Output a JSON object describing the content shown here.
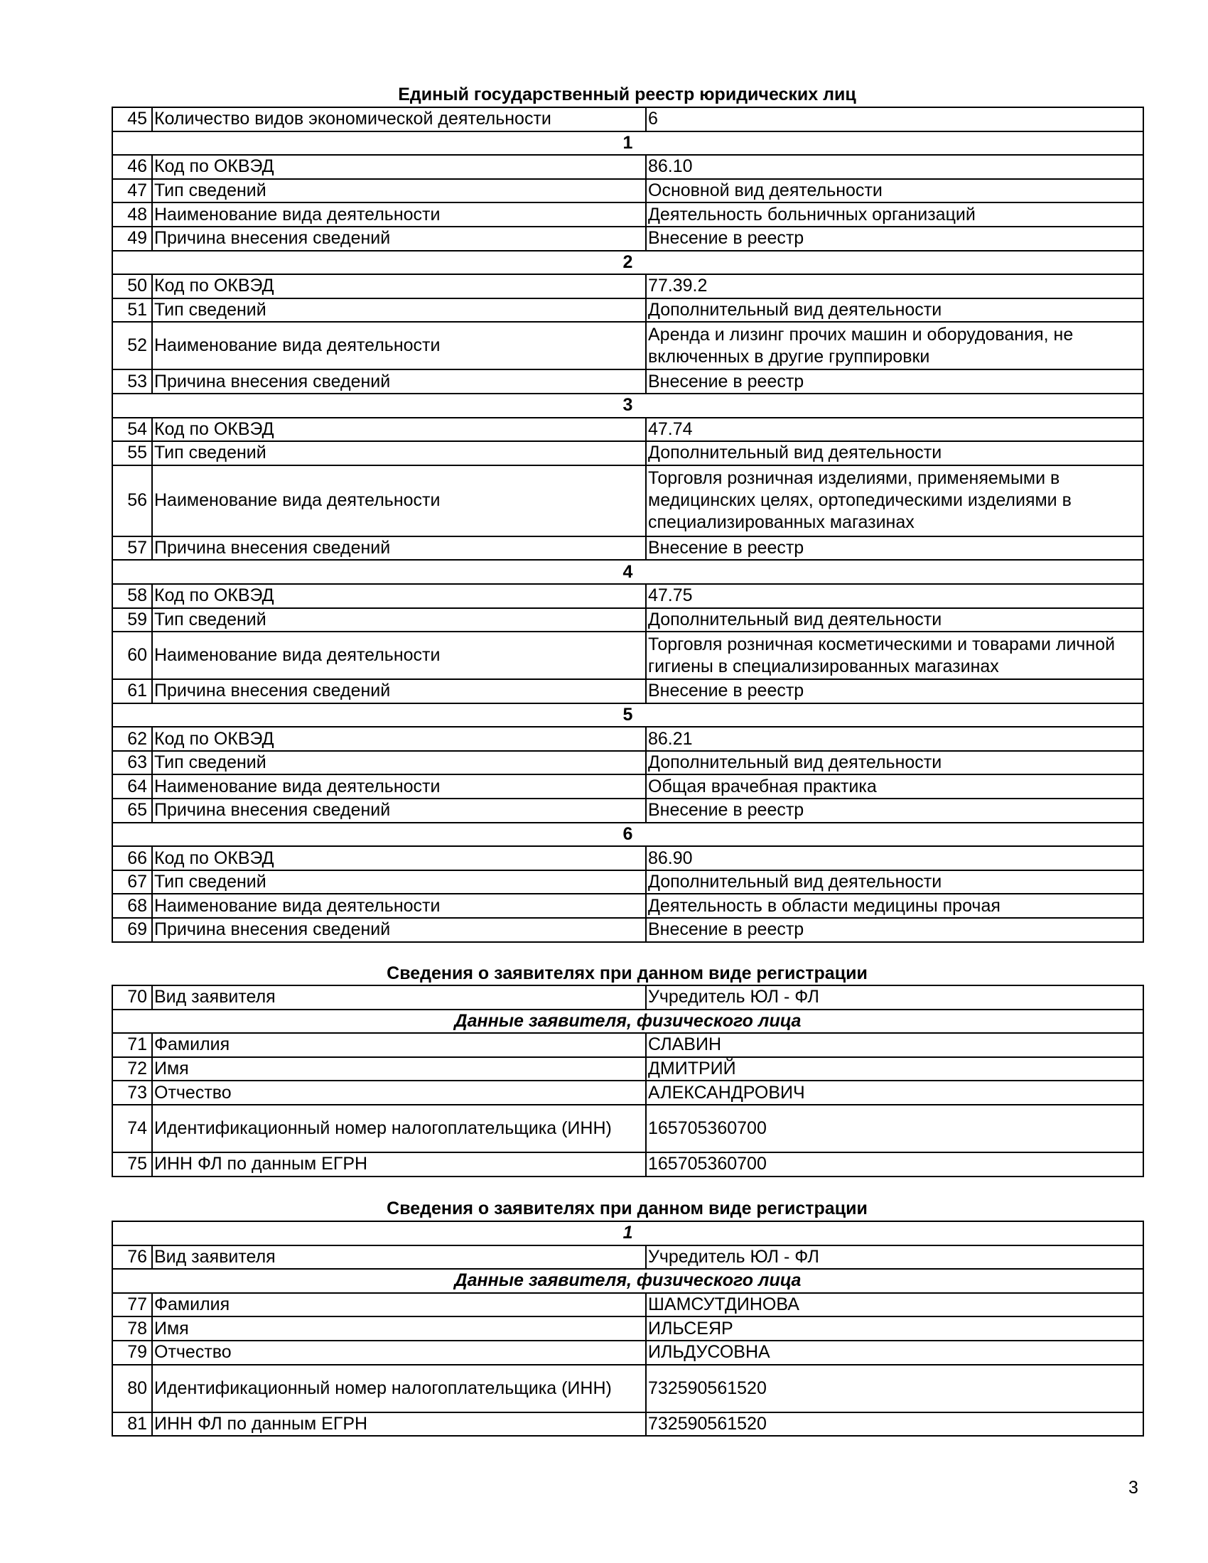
{
  "sections": [
    {
      "title": "Единый государственный реестр юридических лиц",
      "rows": [
        {
          "num": "45",
          "label": "Количество видов экономической деятельности",
          "value": "6"
        },
        {
          "header": "1"
        },
        {
          "num": "46",
          "label": "Код по ОКВЭД",
          "value": "86.10"
        },
        {
          "num": "47",
          "label": "Тип сведений",
          "value": "Основной вид деятельности"
        },
        {
          "num": "48",
          "label": "Наименование вида деятельности",
          "value": "Деятельность больничных организаций"
        },
        {
          "num": "49",
          "label": "Причина внесения сведений",
          "value": "Внесение в реестр"
        },
        {
          "header": "2"
        },
        {
          "num": "50",
          "label": "Код по ОКВЭД",
          "value": "77.39.2"
        },
        {
          "num": "51",
          "label": "Тип сведений",
          "value": "Дополнительный вид деятельности"
        },
        {
          "num": "52",
          "label": "Наименование вида деятельности",
          "value": "Аренда и лизинг прочих машин и оборудования, не включенных в другие группировки",
          "lines": 2
        },
        {
          "num": "53",
          "label": "Причина внесения сведений",
          "value": "Внесение в реестр"
        },
        {
          "header": "3"
        },
        {
          "num": "54",
          "label": "Код по ОКВЭД",
          "value": "47.74"
        },
        {
          "num": "55",
          "label": "Тип сведений",
          "value": "Дополнительный вид деятельности"
        },
        {
          "num": "56",
          "label": "Наименование вида деятельности",
          "value": "Торговля розничная изделиями, применяемыми в медицинских целях, ортопедическими изделиями в специализированных магазинах",
          "lines": 3
        },
        {
          "num": "57",
          "label": "Причина внесения сведений",
          "value": "Внесение в реестр"
        },
        {
          "header": "4"
        },
        {
          "num": "58",
          "label": "Код по ОКВЭД",
          "value": "47.75"
        },
        {
          "num": "59",
          "label": "Тип сведений",
          "value": "Дополнительный вид деятельности"
        },
        {
          "num": "60",
          "label": "Наименование вида деятельности",
          "value": "Торговля розничная косметическими и товарами личной гигиены в специализированных магазинах",
          "lines": 2
        },
        {
          "num": "61",
          "label": "Причина внесения сведений",
          "value": "Внесение в реестр"
        },
        {
          "header": "5"
        },
        {
          "num": "62",
          "label": "Код по ОКВЭД",
          "value": "86.21"
        },
        {
          "num": "63",
          "label": "Тип сведений",
          "value": "Дополнительный вид деятельности"
        },
        {
          "num": "64",
          "label": "Наименование вида деятельности",
          "value": "Общая врачебная практика"
        },
        {
          "num": "65",
          "label": "Причина внесения сведений",
          "value": "Внесение в реестр"
        },
        {
          "header": "6"
        },
        {
          "num": "66",
          "label": "Код по ОКВЭД",
          "value": "86.90"
        },
        {
          "num": "67",
          "label": "Тип сведений",
          "value": "Дополнительный вид деятельности"
        },
        {
          "num": "68",
          "label": "Наименование вида деятельности",
          "value": "Деятельность в области медицины прочая"
        },
        {
          "num": "69",
          "label": "Причина внесения сведений",
          "value": "Внесение в реестр"
        }
      ]
    },
    {
      "title": "Сведения о заявителях при данном виде регистрации",
      "rows": [
        {
          "num": "70",
          "label": "Вид заявителя",
          "value": "Учредитель ЮЛ - ФЛ"
        },
        {
          "header": "Данные заявителя, физического лица",
          "italic": true
        },
        {
          "num": "71",
          "label": "Фамилия",
          "value": "СЛАВИН"
        },
        {
          "num": "72",
          "label": "Имя",
          "value": "ДМИТРИЙ"
        },
        {
          "num": "73",
          "label": "Отчество",
          "value": "АЛЕКСАНДРОВИЧ"
        },
        {
          "num": "74",
          "label": "Идентификационный номер налогоплательщика (ИНН)",
          "value": "165705360700",
          "lines": 2
        },
        {
          "num": "75",
          "label": "ИНН ФЛ по данным ЕГРН",
          "value": "165705360700"
        }
      ]
    },
    {
      "title": "Сведения о заявителях при данном виде регистрации",
      "rows": [
        {
          "header": "1",
          "italic": true
        },
        {
          "num": "76",
          "label": "Вид заявителя",
          "value": "Учредитель ЮЛ - ФЛ"
        },
        {
          "header": "Данные заявителя, физического лица",
          "italic": true
        },
        {
          "num": "77",
          "label": "Фамилия",
          "value": "ШАМСУТДИНОВА"
        },
        {
          "num": "78",
          "label": "Имя",
          "value": "ИЛЬСЕЯР"
        },
        {
          "num": "79",
          "label": "Отчество",
          "value": "ИЛЬДУСОВНА"
        },
        {
          "num": "80",
          "label": "Идентификационный номер налогоплательщика (ИНН)",
          "value": "732590561520",
          "lines": 2
        },
        {
          "num": "81",
          "label": "ИНН ФЛ по данным ЕГРН",
          "value": "732590561520"
        }
      ]
    }
  ],
  "page_number": "3"
}
